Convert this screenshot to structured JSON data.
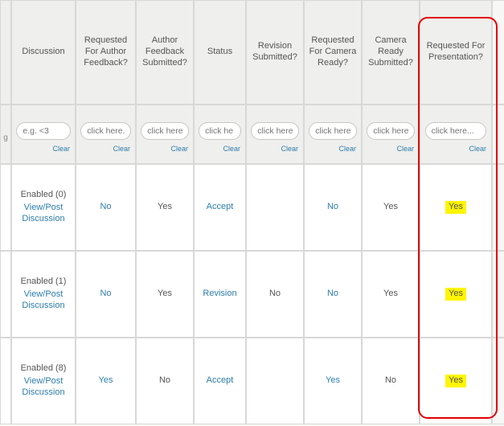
{
  "columns": [
    {
      "key": "stub",
      "header": "",
      "filter_placeholder": ""
    },
    {
      "key": "discussion",
      "header": "Discussion",
      "filter_placeholder": "e.g. <3"
    },
    {
      "key": "req_auth",
      "header": "Requested For Author Feedback?",
      "filter_placeholder": "click here.."
    },
    {
      "key": "auth_sub",
      "header": "Author Feedback Submitted?",
      "filter_placeholder": "click here.."
    },
    {
      "key": "status",
      "header": "Status",
      "filter_placeholder": "click he"
    },
    {
      "key": "rev_sub",
      "header": "Revision Submitted?",
      "filter_placeholder": "click here.."
    },
    {
      "key": "req_cam",
      "header": "Requested For Camera Ready?",
      "filter_placeholder": "click here.."
    },
    {
      "key": "cam_sub",
      "header": "Camera Ready Submitted?",
      "filter_placeholder": "click here.."
    },
    {
      "key": "req_pres",
      "header": "Requested For Presentation?",
      "filter_placeholder": "click here..."
    }
  ],
  "clear_label": "Clear",
  "leading_stub_char": "g",
  "rows": [
    {
      "discussion_enabled": "Enabled (0)",
      "discussion_link": "View/Post Discussion",
      "req_auth": "No",
      "auth_sub": "Yes",
      "status": "Accept",
      "rev_sub": "",
      "req_cam": "No",
      "cam_sub": "Yes",
      "req_pres": "Yes"
    },
    {
      "discussion_enabled": "Enabled (1)",
      "discussion_link": "View/Post Discussion",
      "req_auth": "No",
      "auth_sub": "Yes",
      "status": "Revision",
      "rev_sub": "No",
      "req_cam": "No",
      "cam_sub": "Yes",
      "req_pres": "Yes"
    },
    {
      "discussion_enabled": "Enabled (8)",
      "discussion_link": "View/Post Discussion",
      "req_auth": "Yes",
      "auth_sub": "No",
      "status": "Accept",
      "rev_sub": "",
      "req_cam": "Yes",
      "cam_sub": "No",
      "req_pres": "Yes"
    }
  ],
  "link_color": "#2d7dad",
  "highlight_color": "#fff500",
  "highlighted_column": "req_pres",
  "link_columns": [
    "req_auth",
    "status",
    "req_cam"
  ]
}
